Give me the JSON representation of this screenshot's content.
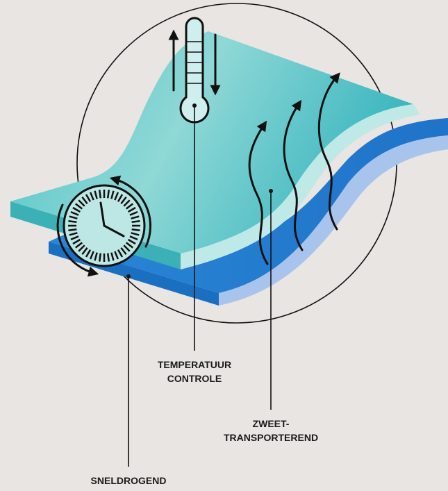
{
  "labels": [
    {
      "lines": [
        "TEMPERATUUR",
        "CONTROLE"
      ]
    },
    {
      "lines": [
        "ZWEET-",
        "TRANSPORTEREND"
      ]
    },
    {
      "lines": [
        "SNELDROGEND"
      ]
    }
  ]
}
